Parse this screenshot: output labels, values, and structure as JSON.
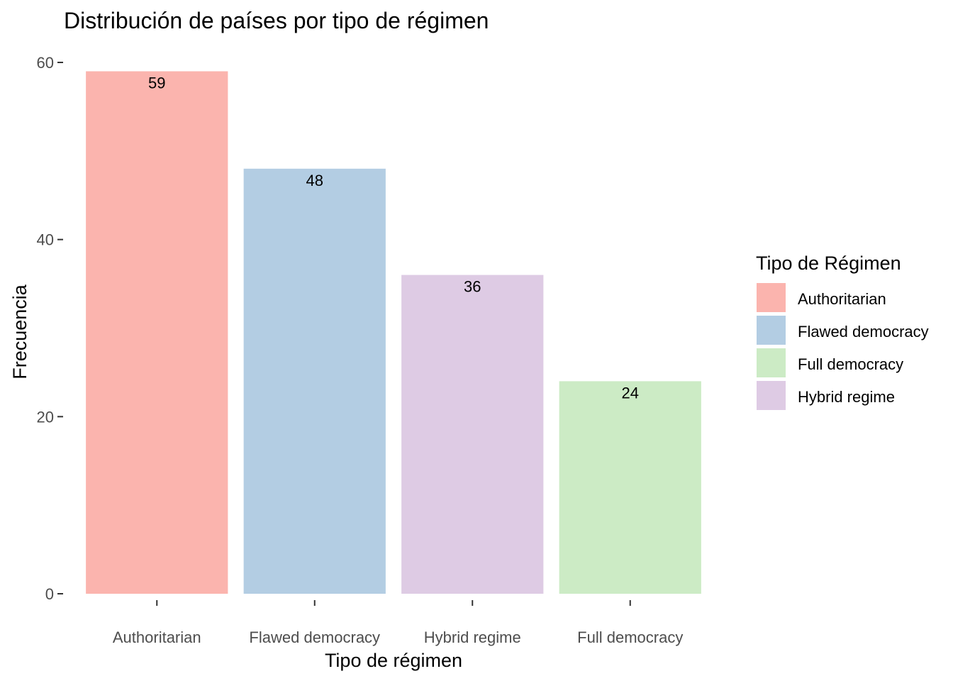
{
  "chart_data": {
    "type": "bar",
    "title": "Distribución de países por tipo de régimen",
    "xlabel": "Tipo de régimen",
    "ylabel": "Frecuencia",
    "categories": [
      "Authoritarian",
      "Flawed democracy",
      "Hybrid regime",
      "Full democracy"
    ],
    "values": [
      59,
      48,
      36,
      24
    ],
    "colors": [
      "#FBB4AE",
      "#B3CDE3",
      "#DECBE4",
      "#CCEBC5"
    ],
    "ylim": [
      0,
      60
    ],
    "yticks": [
      0,
      20,
      40,
      60
    ],
    "grid": false,
    "legend": {
      "title": "Tipo de Régimen",
      "placement": "right",
      "entries": [
        {
          "label": "Authoritarian",
          "color": "#FBB4AE"
        },
        {
          "label": "Flawed democracy",
          "color": "#B3CDE3"
        },
        {
          "label": "Full democracy",
          "color": "#CCEBC5"
        },
        {
          "label": "Hybrid regime",
          "color": "#DECBE4"
        }
      ]
    }
  }
}
